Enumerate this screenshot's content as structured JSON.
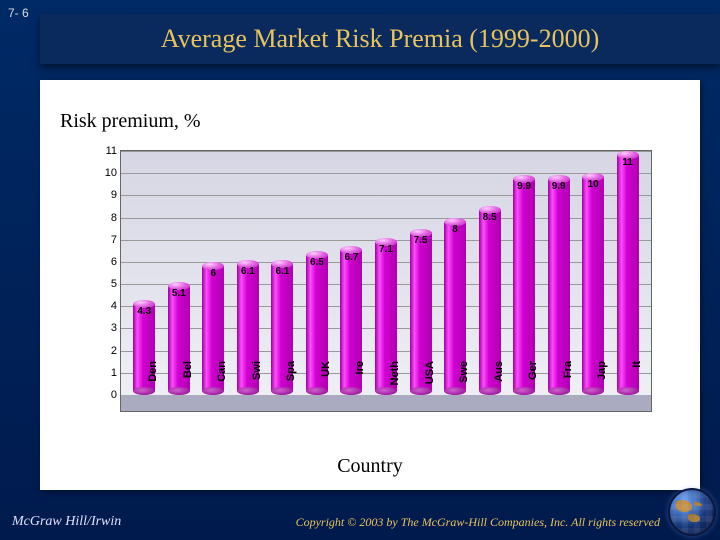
{
  "page_number": "7- 6",
  "title": "Average Market Risk Premia (1999-2000)",
  "y_axis_label": "Risk premium, %",
  "x_axis_label": "Country",
  "chart": {
    "type": "bar-cylinder",
    "ymin": 0,
    "ymax": 11,
    "ytick_step": 1,
    "bar_color_gradient": [
      "#ff4dff",
      "#b000b0"
    ],
    "background_color": "#e4e4f0",
    "grid_color": "#999999",
    "categories": [
      "Den",
      "Bel",
      "Can",
      "Swi",
      "Spa",
      "UK",
      "Ire",
      "Neth",
      "USA",
      "Swe",
      "Aus",
      "Ger",
      "Fra",
      "Jap",
      "It"
    ],
    "values": [
      4.3,
      5.1,
      6,
      6.1,
      6.1,
      6.5,
      6.7,
      7.1,
      7.5,
      8,
      8.5,
      9.9,
      9.9,
      10,
      11
    ],
    "label_fontsize": 10,
    "tick_fontsize": 11
  },
  "footer": {
    "left": "McGraw Hill/Irwin",
    "right": "Copyright © 2003 by The McGraw-Hill Companies, Inc. All rights reserved"
  }
}
